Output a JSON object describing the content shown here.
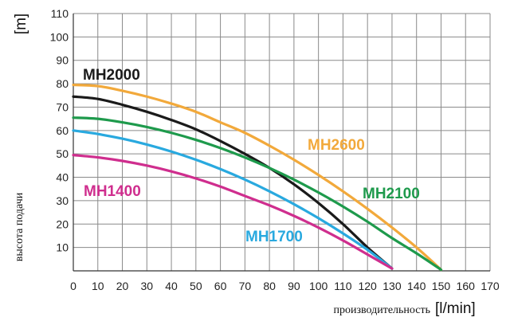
{
  "chart_data": {
    "type": "line",
    "title": "",
    "xlabel": "производительность",
    "xunit": "[l/min]",
    "ylabel": "высота подачи",
    "yunit": "[m]",
    "xlim": [
      0,
      170
    ],
    "ylim": [
      0,
      110
    ],
    "xticks": [
      0,
      10,
      20,
      30,
      40,
      50,
      60,
      70,
      80,
      90,
      100,
      110,
      120,
      130,
      140,
      150,
      160,
      170
    ],
    "yticks": [
      10,
      20,
      30,
      40,
      50,
      60,
      70,
      80,
      90,
      100,
      110
    ],
    "grid": true,
    "legend": "inline labels",
    "series": [
      {
        "name": "MH2000",
        "color": "#1a1a1a",
        "x": [
          0,
          10,
          20,
          30,
          40,
          50,
          60,
          70,
          80,
          90,
          100,
          110,
          120,
          130
        ],
        "y": [
          74.5,
          73.5,
          71,
          68,
          64.5,
          60.5,
          55.5,
          50,
          44,
          37,
          29,
          20,
          10,
          1
        ]
      },
      {
        "name": "MH2600",
        "color": "#f2a93b",
        "x": [
          0,
          10,
          20,
          30,
          40,
          50,
          60,
          70,
          80,
          90,
          100,
          110,
          120,
          130,
          140,
          150
        ],
        "y": [
          79.5,
          79,
          77,
          74.5,
          71.5,
          68,
          63.5,
          59,
          53.5,
          47.5,
          41,
          34,
          26.5,
          18.5,
          10,
          0.5
        ]
      },
      {
        "name": "MH2100",
        "color": "#1e9a4c",
        "x": [
          0,
          10,
          20,
          30,
          40,
          50,
          60,
          70,
          80,
          90,
          100,
          110,
          120,
          130,
          140,
          150
        ],
        "y": [
          65.5,
          65,
          63.5,
          61.5,
          59,
          56,
          52.5,
          48.5,
          44,
          39,
          33.5,
          27.5,
          21,
          14,
          7.5,
          0.5
        ]
      },
      {
        "name": "MH1700",
        "color": "#29a9df",
        "x": [
          0,
          10,
          20,
          30,
          40,
          50,
          60,
          70,
          80,
          90,
          100,
          110,
          120,
          130
        ],
        "y": [
          60,
          58.5,
          56.5,
          54,
          51,
          47.5,
          43.5,
          39,
          34,
          28.5,
          22.5,
          16,
          9,
          1
        ]
      },
      {
        "name": "MH1400",
        "color": "#cf2e8e",
        "x": [
          0,
          10,
          20,
          30,
          40,
          50,
          60,
          70,
          80,
          90,
          100,
          110,
          120,
          130
        ],
        "y": [
          49.5,
          48.5,
          47,
          45,
          42.5,
          39.5,
          36,
          32,
          28,
          23.5,
          18.5,
          13,
          7,
          1
        ]
      }
    ]
  }
}
